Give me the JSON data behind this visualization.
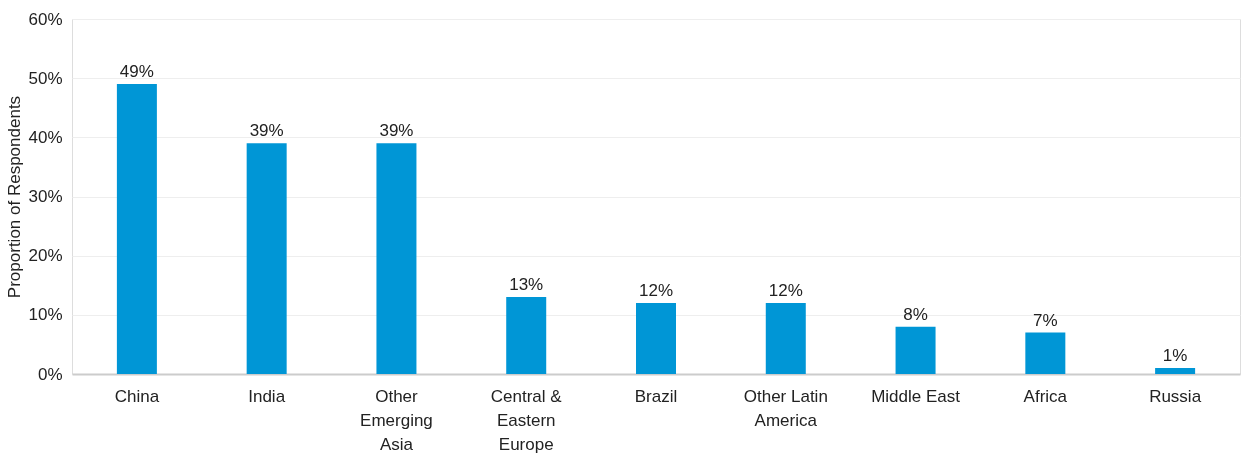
{
  "chart_data": {
    "type": "bar",
    "ylabel": "Proportion of Respondents",
    "categories": [
      "China",
      "India",
      "Other Emerging Asia",
      "Central & Eastern Europe",
      "Brazil",
      "Other Latin America",
      "Middle East",
      "Africa",
      "Russia"
    ],
    "values": [
      49,
      39,
      39,
      13,
      12,
      12,
      8,
      7,
      1
    ],
    "color": "#0096d6",
    "ylim": [
      0,
      60
    ],
    "yticks": [
      {
        "value": 0,
        "label": "0%"
      },
      {
        "value": 10,
        "label": "10%"
      },
      {
        "value": 20,
        "label": "20%"
      },
      {
        "value": 30,
        "label": "30%"
      },
      {
        "value": 40,
        "label": "40%"
      },
      {
        "value": 50,
        "label": "50%"
      },
      {
        "value": 60,
        "label": "60%"
      }
    ],
    "grid": "y",
    "data_labels": true,
    "value_labels": [
      "49%",
      "39%",
      "39%",
      "13%",
      "12%",
      "12%",
      "8%",
      "7%",
      "1%"
    ]
  }
}
